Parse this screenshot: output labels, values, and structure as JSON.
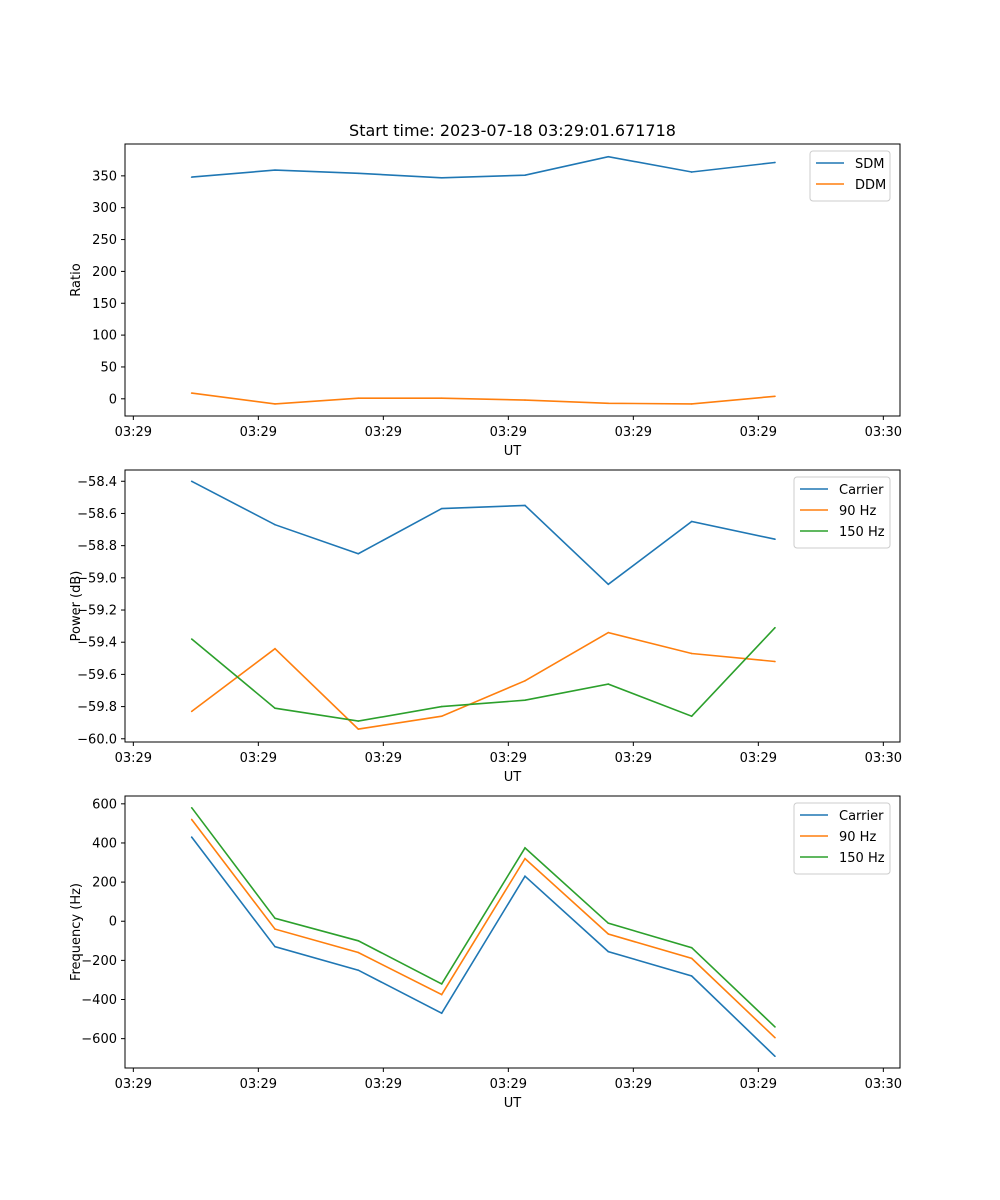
{
  "chart_data": [
    {
      "type": "line",
      "title": "Start time: 2023-07-18 03:29:01.671718",
      "xlabel": "UT",
      "ylabel": "Ratio",
      "x": [
        1,
        2,
        3,
        4,
        5,
        6,
        7,
        8
      ],
      "xlim": [
        0.2,
        9.5
      ],
      "xticks": [
        0.3,
        1.8,
        3.3,
        4.8,
        6.3,
        7.8,
        9.3
      ],
      "xtick_labels": [
        "03:29",
        "03:29",
        "03:29",
        "03:29",
        "03:29",
        "03:29",
        "03:30"
      ],
      "ylim": [
        -27,
        400
      ],
      "yticks": [
        0,
        50,
        100,
        150,
        200,
        250,
        300,
        350
      ],
      "ytick_labels": [
        "0",
        "50",
        "100",
        "150",
        "200",
        "250",
        "300",
        "350"
      ],
      "legend": "top-right",
      "series": [
        {
          "name": "SDM",
          "color": "#1f77b4",
          "values": [
            348,
            359,
            354,
            347,
            351,
            380,
            356,
            371
          ]
        },
        {
          "name": "DDM",
          "color": "#ff7f0e",
          "values": [
            9,
            -8,
            1,
            1,
            -2,
            -7,
            -8,
            4
          ]
        }
      ]
    },
    {
      "type": "line",
      "title": "",
      "xlabel": "UT",
      "ylabel": "Power (dB)",
      "x": [
        1,
        2,
        3,
        4,
        5,
        6,
        7,
        8
      ],
      "xlim": [
        0.2,
        9.5
      ],
      "xticks": [
        0.3,
        1.8,
        3.3,
        4.8,
        6.3,
        7.8,
        9.3
      ],
      "xtick_labels": [
        "03:29",
        "03:29",
        "03:29",
        "03:29",
        "03:29",
        "03:29",
        "03:30"
      ],
      "ylim": [
        -60.02,
        -58.33
      ],
      "yticks": [
        -60.0,
        -59.8,
        -59.6,
        -59.4,
        -59.2,
        -59.0,
        -58.8,
        -58.6,
        -58.4
      ],
      "ytick_labels": [
        "−60.0",
        "−59.8",
        "−59.6",
        "−59.4",
        "−59.2",
        "−59.0",
        "−58.8",
        "−58.6",
        "−58.4"
      ],
      "legend": "top-right",
      "series": [
        {
          "name": "Carrier",
          "color": "#1f77b4",
          "values": [
            -58.4,
            -58.67,
            -58.85,
            -58.57,
            -58.55,
            -59.04,
            -58.65,
            -58.76
          ]
        },
        {
          "name": "90 Hz",
          "color": "#ff7f0e",
          "values": [
            -59.83,
            -59.44,
            -59.94,
            -59.86,
            -59.64,
            -59.34,
            -59.47,
            -59.52
          ]
        },
        {
          "name": "150 Hz",
          "color": "#2ca02c",
          "values": [
            -59.38,
            -59.81,
            -59.89,
            -59.8,
            -59.76,
            -59.66,
            -59.86,
            -59.31
          ]
        }
      ]
    },
    {
      "type": "line",
      "title": "",
      "xlabel": "UT",
      "ylabel": "Frequency (Hz)",
      "x": [
        1,
        2,
        3,
        4,
        5,
        6,
        7,
        8
      ],
      "xlim": [
        0.2,
        9.5
      ],
      "xticks": [
        0.3,
        1.8,
        3.3,
        4.8,
        6.3,
        7.8,
        9.3
      ],
      "xtick_labels": [
        "03:29",
        "03:29",
        "03:29",
        "03:29",
        "03:29",
        "03:29",
        "03:30"
      ],
      "ylim": [
        -750,
        640
      ],
      "yticks": [
        -600,
        -400,
        -200,
        0,
        200,
        400,
        600
      ],
      "ytick_labels": [
        "−600",
        "−400",
        "−200",
        "0",
        "200",
        "400",
        "600"
      ],
      "legend": "top-right",
      "series": [
        {
          "name": "Carrier",
          "color": "#1f77b4",
          "values": [
            430,
            -130,
            -250,
            -470,
            230,
            -155,
            -280,
            -690
          ]
        },
        {
          "name": "90 Hz",
          "color": "#ff7f0e",
          "values": [
            520,
            -40,
            -160,
            -375,
            320,
            -65,
            -190,
            -595
          ]
        },
        {
          "name": "150 Hz",
          "color": "#2ca02c",
          "values": [
            580,
            15,
            -100,
            -320,
            375,
            -10,
            -135,
            -540
          ]
        }
      ]
    }
  ]
}
